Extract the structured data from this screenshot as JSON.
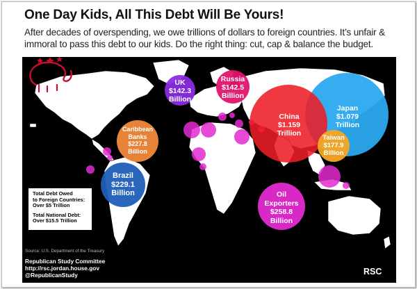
{
  "header": {
    "title": "One Day Kids, All This Debt Will Be Yours!",
    "subtitle": "After decades of overspending, we owe trillions of dollars to foreign countries. It’s unfair & immoral to pass this debt to our kids. Do the right thing: cut, cap & balance the budget."
  },
  "bubbles": [
    {
      "id": "japan",
      "name": "Japan",
      "amount": "$1.079",
      "unit": "Trillion",
      "color": "#2ba9f0"
    },
    {
      "id": "china",
      "name": "China",
      "amount": "$1.159",
      "unit": "Trillion",
      "color": "#ee1c25"
    },
    {
      "id": "russia",
      "name": "Russia",
      "amount": "$142.5",
      "unit": "Billion",
      "color": "#e0146e"
    },
    {
      "id": "uk",
      "name": "UK",
      "amount": "$142.3",
      "unit": "Billion",
      "color": "#8a2be2"
    },
    {
      "id": "caribbean",
      "name": "Caribbean Banks",
      "amount": "$227.8",
      "unit": "Billion",
      "color": "#f28a3c"
    },
    {
      "id": "brazil",
      "name": "Brazil",
      "amount": "$229.1",
      "unit": "Billion",
      "color": "#1f5fb8"
    },
    {
      "id": "taiwan",
      "name": "Taiwan",
      "amount": "$177.9",
      "unit": "Billion",
      "color": "#f5a623"
    },
    {
      "id": "oil",
      "name": "Oil Exporters",
      "amount": "$258.8",
      "unit": "Billion",
      "color": "#e42bd2"
    }
  ],
  "totals": {
    "foreign_line1": "Total Debt Owed",
    "foreign_line2": "to Foreign Countries:",
    "foreign_value": "Over $5 Trillion",
    "national_line1": "Total National Debt:",
    "national_value": "Over $15.5 Trillion"
  },
  "source": "Source: U.S. Department of the Treasury",
  "footer": {
    "org": "Republican Study Committee",
    "url": "http://rsc.jordan.house.gov",
    "handle": "@RepublicanStudy"
  },
  "logo": {
    "text": "RSC",
    "color": "#c8102e"
  },
  "colors": {
    "small_bubbles": "#e42bd2",
    "land": "#ffffff",
    "ocean": "#000000"
  }
}
